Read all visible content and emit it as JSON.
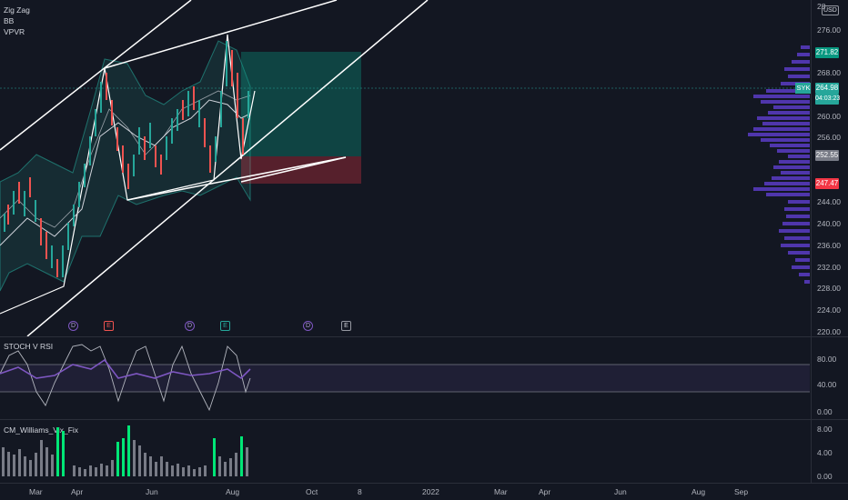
{
  "indicators": {
    "zigzag": "Zig Zag",
    "bb": "BB",
    "vpvr": "VPVR"
  },
  "currency": "USD",
  "top_clip": "28",
  "price_axis": [
    "276.00",
    "268.00",
    "260.00",
    "256.00",
    "244.00",
    "240.00",
    "236.00",
    "232.00",
    "228.00",
    "224.00",
    "220.00"
  ],
  "tags": {
    "target": "271.82",
    "symbol": "SYK",
    "last": "264.98",
    "countdown": "04:03:23",
    "entry": "252.55",
    "stop": "247.47"
  },
  "events": [
    "D",
    "E",
    "D",
    "E",
    "D",
    "E"
  ],
  "stoch": {
    "title": "STOCH V RSI",
    "ticks": [
      "80.00",
      "40.00",
      "0.00"
    ]
  },
  "vix": {
    "title": "CM_Williams_Vix_Fix",
    "ticks": [
      "8.00",
      "4.00",
      "0.00"
    ]
  },
  "time_axis": [
    "Mar",
    "Apr",
    "Jun",
    "Aug",
    "Oct",
    "8",
    "2022",
    "Mar",
    "Apr",
    "Jun",
    "Aug",
    "Sep"
  ],
  "colors": {
    "bg": "#131722",
    "up": "#26a69a",
    "down": "#ef5350",
    "accent": "#2962ff",
    "target": "#089981",
    "stop": "#f23645",
    "vol": "#5b3cc4"
  }
}
